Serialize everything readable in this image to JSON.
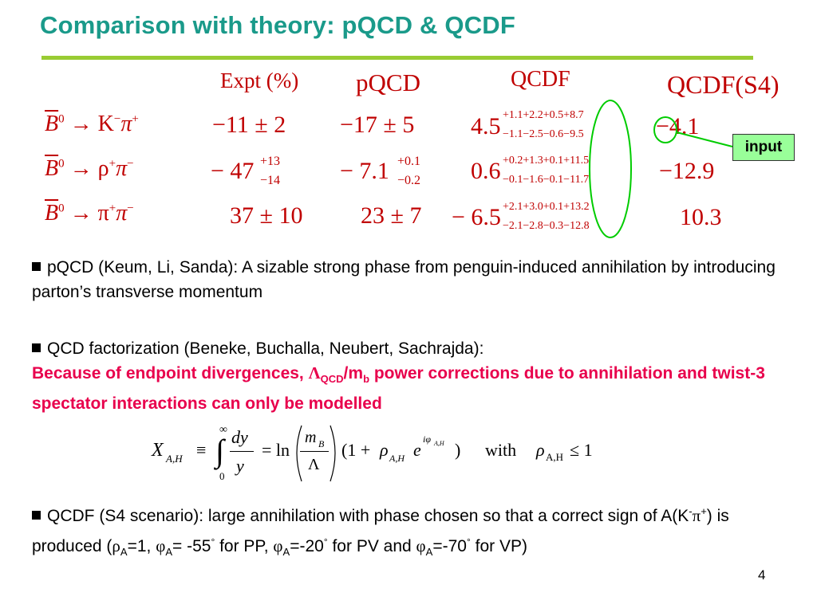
{
  "slide": {
    "title": "Comparison with theory: pQCD & QCDF",
    "page_number": "4",
    "accent_colors": {
      "title": "#1a9a8a",
      "rule": "#99cc33",
      "table_text": "#c00000",
      "highlight_text": "#e8004c",
      "input_box": "#99ff99"
    }
  },
  "table": {
    "headers": [
      "Expt (%)",
      "pQCD",
      "QCDF",
      "QCDF(S4)"
    ],
    "rows": [
      {
        "process_b": "B",
        "process_b_sup": "0",
        "process_rest": "→ K",
        "process_rest_sup1": "−",
        "process_rest2": "π",
        "process_rest_sup2": "+",
        "expt": "−11 ± 2",
        "expt_sup": "",
        "expt_sub": "",
        "pqcd": "−17 ± 5",
        "pqcd_sup": "",
        "pqcd_sub": "",
        "qcdf": "4.5",
        "qcdf_sup": "+1.1+2.2+0.5+8.7",
        "qcdf_sub": "−1.1−2.5−0.6−9.5",
        "s4": "−4.1"
      },
      {
        "process_b": "B",
        "process_b_sup": "0",
        "process_rest": "→ ρ",
        "process_rest_sup1": "+",
        "process_rest2": "π",
        "process_rest_sup2": "−",
        "expt": "− 47",
        "expt_sup": "+13",
        "expt_sub": "−14",
        "pqcd": "− 7.1",
        "pqcd_sup": "+0.1",
        "pqcd_sub": "−0.2",
        "qcdf": "0.6",
        "qcdf_sup": "+0.2+1.3+0.1+11.5",
        "qcdf_sub": "−0.1−1.6−0.1−11.7",
        "s4": "−12.9"
      },
      {
        "process_b": "B",
        "process_b_sup": "0",
        "process_rest": "→ π",
        "process_rest_sup1": "+",
        "process_rest2": "π",
        "process_rest_sup2": "−",
        "expt": "37 ± 10",
        "expt_sup": "",
        "expt_sub": "",
        "pqcd": "23 ± 7",
        "pqcd_sup": "",
        "pqcd_sub": "",
        "qcdf": "− 6.5",
        "qcdf_sup": "+2.1+3.0+0.1+13.2",
        "qcdf_sub": "−2.1−2.8−0.3−12.8",
        "s4": "10.3"
      }
    ],
    "input_label": "input"
  },
  "bullets": {
    "pqcd": "pQCD (Keum, Li, Sanda): A sizable strong phase from penguin-induced annihilation by introducing parton’s transverse momentum",
    "qcdf_intro": "QCD factorization  (Beneke, Buchalla, Neubert, Sachrajda):",
    "qcdf_red_1": "Because of endpoint divergences, ",
    "qcdf_red_lambda": "Λ",
    "qcdf_red_lambda_sub": "QCD",
    "qcdf_red_m": "/m",
    "qcdf_red_m_sub": "b",
    "qcdf_red_2": " power corrections due to annihilation and twist-3 spectator interactions can only be modelled",
    "s4_part1": "QCDF (S4 scenario): large annihilation with phase chosen so that a correct sign of A(K",
    "s4_sup1": "-",
    "s4_pi": "π",
    "s4_sup2": "+",
    "s4_part2": ") is produced (",
    "s4_rho": "ρ",
    "s4_rho_sub": "A",
    "s4_part3": "=1, ",
    "s4_phi1": "φ",
    "s4_phi1_sub": "A",
    "s4_part4": "= -55",
    "s4_deg1": "°",
    "s4_part5": " for PP, ",
    "s4_phi2": "φ",
    "s4_phi2_sub": "A",
    "s4_part6": "=-20",
    "s4_deg2": "°",
    "s4_part7": " for PV and ",
    "s4_phi3": "φ",
    "s4_phi3_sub": "A",
    "s4_part8": "=-70",
    "s4_deg3": "°",
    "s4_part9": " for VP)"
  },
  "formula": {
    "X": "X",
    "X_sub": "A,H",
    "equiv": "≡",
    "int_upper": "∞",
    "int_lower": "0",
    "int": "∫",
    "dy": "dy",
    "y": "y",
    "eq": "= ln",
    "mB": "m",
    "mB_sub": "B",
    "Lambda": "Λ",
    "paren_open": "(1 + ",
    "rho": "ρ",
    "rho_sub": "A,H",
    "e": "e",
    "e_sup": "iφ",
    "e_sup_sub": "A,H",
    "paren_close": ")",
    "with": "with",
    "rho2": "ρ",
    "rho2_sub": "A,H",
    "leq": "≤ 1"
  }
}
